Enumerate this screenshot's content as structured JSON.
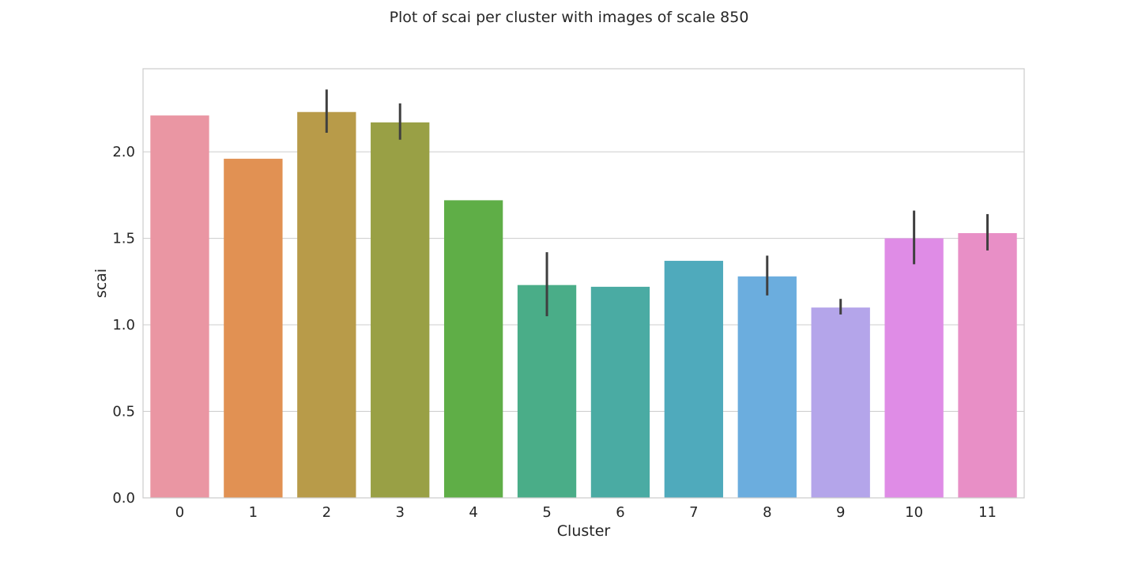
{
  "chart_data": {
    "type": "bar",
    "title": "Plot of scai per cluster with images of scale 850",
    "xlabel": "Cluster",
    "ylabel": "scai",
    "categories": [
      "0",
      "1",
      "2",
      "3",
      "4",
      "5",
      "6",
      "7",
      "8",
      "9",
      "10",
      "11"
    ],
    "values": [
      2.21,
      1.96,
      2.23,
      2.17,
      1.72,
      1.23,
      1.22,
      1.37,
      1.28,
      1.1,
      1.5,
      1.53
    ],
    "error_bars": [
      null,
      null,
      [
        2.11,
        2.36
      ],
      [
        2.07,
        2.28
      ],
      null,
      [
        1.05,
        1.42
      ],
      null,
      null,
      [
        1.17,
        1.4
      ],
      [
        1.06,
        1.15
      ],
      [
        1.35,
        1.66
      ],
      [
        1.43,
        1.64
      ]
    ],
    "ylim": [
      0,
      2.48
    ],
    "yticks": [
      {
        "value": 0.0,
        "label": "0.0"
      },
      {
        "value": 0.5,
        "label": "0.5"
      },
      {
        "value": 1.0,
        "label": "1.0"
      },
      {
        "value": 1.5,
        "label": "1.5"
      },
      {
        "value": 2.0,
        "label": "2.0"
      }
    ],
    "grid": true,
    "legend": "none",
    "colors": [
      "#ea96a3",
      "#e19153",
      "#b89b49",
      "#99a045",
      "#5fae47",
      "#4aad88",
      "#4aaba3",
      "#4faabc",
      "#6badde",
      "#b4a5ea",
      "#df8ce6",
      "#e88fc6"
    ],
    "error_color": "#3f3f3f",
    "grid_color": "#cccccc"
  }
}
